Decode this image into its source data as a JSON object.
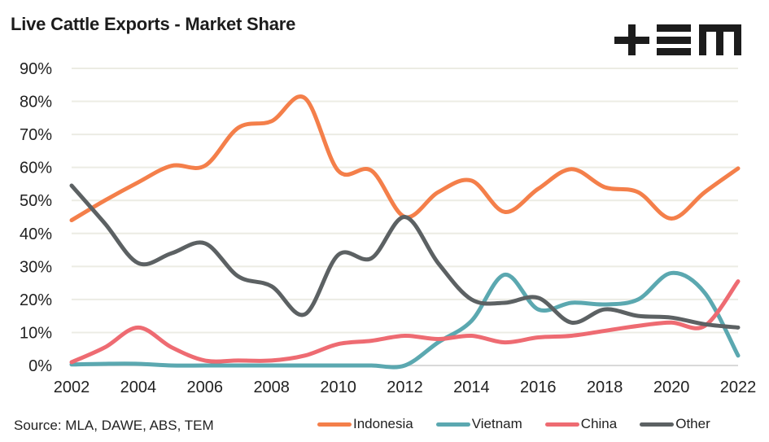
{
  "title": "Live Cattle Exports - Market Share",
  "logo": {
    "name": "TEM",
    "icon": "tem-logo"
  },
  "source": "Source: MLA, DAWE, ABS, TEM",
  "chart_data": {
    "type": "line",
    "title": "Live Cattle Exports - Market Share",
    "xlabel": "",
    "ylabel": "",
    "x": [
      2002,
      2003,
      2004,
      2005,
      2006,
      2007,
      2008,
      2009,
      2010,
      2011,
      2012,
      2013,
      2014,
      2015,
      2016,
      2017,
      2018,
      2019,
      2020,
      2021,
      2022
    ],
    "xticks": [
      "2002",
      "2004",
      "2006",
      "2008",
      "2010",
      "2012",
      "2014",
      "2016",
      "2018",
      "2020",
      "2022"
    ],
    "yticks": [
      "0%",
      "10%",
      "20%",
      "30%",
      "40%",
      "50%",
      "60%",
      "70%",
      "80%",
      "90%"
    ],
    "ylim": [
      0,
      90
    ],
    "grid": true,
    "smooth": true,
    "legend_position": "bottom",
    "series": [
      {
        "name": "Indonesia",
        "color": "#F47F4A",
        "values": [
          44,
          50,
          55.5,
          60.5,
          60.5,
          72,
          74,
          81,
          59,
          59,
          45,
          52.5,
          56,
          46.5,
          53.5,
          59.5,
          54,
          52.5,
          44.5,
          52.5,
          59.7
        ]
      },
      {
        "name": "Vietnam",
        "color": "#5BA8B0",
        "values": [
          0.3,
          0.5,
          0.5,
          0,
          0,
          0,
          0,
          0,
          0,
          0,
          0,
          7,
          13.5,
          27.5,
          17,
          19,
          18.5,
          20,
          28,
          22,
          3
        ]
      },
      {
        "name": "China",
        "color": "#EE6B72",
        "values": [
          1,
          5.5,
          11.5,
          5.5,
          1.5,
          1.5,
          1.5,
          3,
          6.5,
          7.5,
          9,
          8,
          9,
          7,
          8.5,
          9,
          10.5,
          12,
          13,
          12,
          25.5
        ]
      },
      {
        "name": "Other",
        "color": "#5C6163",
        "values": [
          54.5,
          43,
          31,
          34,
          37,
          27,
          24,
          15.5,
          33.5,
          32.5,
          45,
          31,
          20,
          19,
          20.5,
          13,
          17,
          15,
          14.5,
          12.5,
          11.5
        ]
      }
    ]
  }
}
